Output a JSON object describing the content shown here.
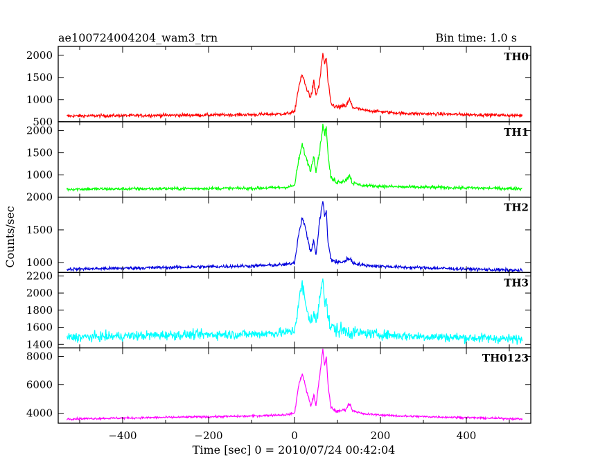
{
  "header": {
    "title": "ae100724004204_wam3_trn",
    "bin_time": "Bin time: 1.0 s"
  },
  "chart_data": {
    "type": "line",
    "xlabel": "Time [sec] 0 = 2010/07/24 00:42:04",
    "ylabel": "Counts/sec",
    "xlim": [
      -550,
      550
    ],
    "x_ticks": [
      -400,
      -200,
      0,
      200,
      400
    ],
    "x_tick_labels": [
      "−400",
      "−200",
      "0",
      "200",
      "400"
    ],
    "panels": [
      {
        "name": "TH0",
        "color": "#ff0000",
        "ylim": [
          500,
          2200
        ],
        "y_ticks": [
          500,
          1000,
          1500,
          2000
        ],
        "baseline": 630,
        "noise": 35,
        "curve": [
          [
            -530,
            630
          ],
          [
            -100,
            660
          ],
          [
            -20,
            680
          ],
          [
            0,
            720
          ],
          [
            10,
            1300
          ],
          [
            18,
            1560
          ],
          [
            28,
            1250
          ],
          [
            38,
            1050
          ],
          [
            45,
            1400
          ],
          [
            50,
            1100
          ],
          [
            58,
            1350
          ],
          [
            62,
            1700
          ],
          [
            66,
            2050
          ],
          [
            70,
            1800
          ],
          [
            74,
            1950
          ],
          [
            78,
            1400
          ],
          [
            85,
            900
          ],
          [
            100,
            820
          ],
          [
            120,
            860
          ],
          [
            128,
            1000
          ],
          [
            135,
            830
          ],
          [
            160,
            760
          ],
          [
            250,
            690
          ],
          [
            530,
            640
          ]
        ]
      },
      {
        "name": "TH1",
        "color": "#00ff00",
        "ylim": [
          500,
          2200
        ],
        "y_ticks": [
          1000,
          1500,
          2000
        ],
        "baseline": 680,
        "noise": 35,
        "curve": [
          [
            -530,
            680
          ],
          [
            -100,
            700
          ],
          [
            -20,
            720
          ],
          [
            0,
            760
          ],
          [
            10,
            1350
          ],
          [
            18,
            1680
          ],
          [
            28,
            1350
          ],
          [
            38,
            1100
          ],
          [
            45,
            1450
          ],
          [
            50,
            1100
          ],
          [
            58,
            1500
          ],
          [
            62,
            1800
          ],
          [
            66,
            2150
          ],
          [
            70,
            1900
          ],
          [
            74,
            2100
          ],
          [
            78,
            1450
          ],
          [
            85,
            920
          ],
          [
            100,
            840
          ],
          [
            120,
            880
          ],
          [
            128,
            1000
          ],
          [
            135,
            820
          ],
          [
            160,
            760
          ],
          [
            250,
            730
          ],
          [
            530,
            690
          ]
        ]
      },
      {
        "name": "TH2",
        "color": "#0000dd",
        "ylim": [
          850,
          2000
        ],
        "y_ticks": [
          1000,
          1500,
          2000
        ],
        "baseline": 900,
        "noise": 25,
        "curve": [
          [
            -530,
            900
          ],
          [
            -100,
            950
          ],
          [
            -20,
            970
          ],
          [
            0,
            1000
          ],
          [
            10,
            1450
          ],
          [
            18,
            1700
          ],
          [
            28,
            1450
          ],
          [
            38,
            1150
          ],
          [
            45,
            1350
          ],
          [
            50,
            1100
          ],
          [
            58,
            1600
          ],
          [
            62,
            1800
          ],
          [
            66,
            1950
          ],
          [
            70,
            1700
          ],
          [
            74,
            1800
          ],
          [
            78,
            1300
          ],
          [
            85,
            1050
          ],
          [
            100,
            1000
          ],
          [
            120,
            1030
          ],
          [
            128,
            1080
          ],
          [
            135,
            1000
          ],
          [
            160,
            960
          ],
          [
            250,
            930
          ],
          [
            530,
            880
          ]
        ]
      },
      {
        "name": "TH3",
        "color": "#00ffff",
        "ylim": [
          1360,
          2240
        ],
        "y_ticks": [
          1400,
          1600,
          1800,
          2000,
          2200
        ],
        "baseline": 1480,
        "noise": 55,
        "curve": [
          [
            -530,
            1480
          ],
          [
            -300,
            1510
          ],
          [
            -100,
            1520
          ],
          [
            -20,
            1540
          ],
          [
            0,
            1560
          ],
          [
            10,
            1900
          ],
          [
            18,
            2100
          ],
          [
            28,
            1800
          ],
          [
            38,
            1680
          ],
          [
            45,
            1750
          ],
          [
            50,
            1650
          ],
          [
            58,
            1900
          ],
          [
            62,
            2050
          ],
          [
            66,
            2220
          ],
          [
            70,
            1900
          ],
          [
            74,
            1950
          ],
          [
            78,
            1700
          ],
          [
            85,
            1600
          ],
          [
            100,
            1570
          ],
          [
            160,
            1530
          ],
          [
            250,
            1500
          ],
          [
            530,
            1460
          ]
        ]
      },
      {
        "name": "TH0123",
        "color": "#ff00ff",
        "ylim": [
          3300,
          8600
        ],
        "y_ticks": [
          4000,
          6000,
          8000
        ],
        "baseline": 3600,
        "noise": 70,
        "curve": [
          [
            -530,
            3600
          ],
          [
            -100,
            3800
          ],
          [
            -20,
            3900
          ],
          [
            0,
            4000
          ],
          [
            10,
            6000
          ],
          [
            18,
            6800
          ],
          [
            28,
            5600
          ],
          [
            38,
            4500
          ],
          [
            45,
            5300
          ],
          [
            50,
            4500
          ],
          [
            58,
            6500
          ],
          [
            62,
            7500
          ],
          [
            66,
            8500
          ],
          [
            70,
            7300
          ],
          [
            74,
            8000
          ],
          [
            78,
            6000
          ],
          [
            85,
            4400
          ],
          [
            100,
            4100
          ],
          [
            120,
            4300
          ],
          [
            128,
            4700
          ],
          [
            135,
            4200
          ],
          [
            160,
            3950
          ],
          [
            250,
            3800
          ],
          [
            530,
            3600
          ]
        ]
      }
    ]
  }
}
